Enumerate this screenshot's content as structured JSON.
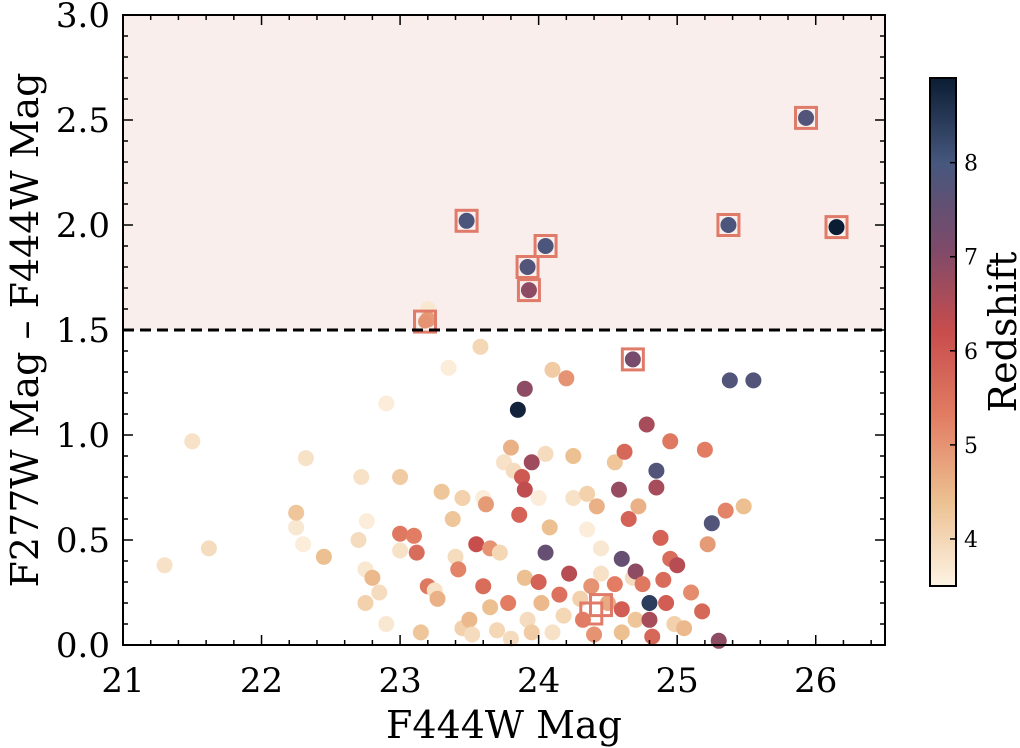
{
  "chart_data": {
    "type": "scatter",
    "xlabel": "F444W Mag",
    "ylabel": "F277W Mag – F444W Mag",
    "xlim": [
      21,
      26.5
    ],
    "ylim": [
      0.0,
      3.0
    ],
    "x_ticks": [
      "21",
      "22",
      "23",
      "24",
      "25",
      "26"
    ],
    "y_ticks": [
      "0.0",
      "0.5",
      "1.0",
      "1.5",
      "2.0",
      "2.5",
      "3.0"
    ],
    "threshold_line": {
      "y": 1.5,
      "style": "dashed"
    },
    "shaded_region": {
      "y_from": 1.5,
      "y_to": 3.0,
      "color": "#f9eeec"
    },
    "colorbar": {
      "label": "Redshift",
      "range": [
        3.5,
        8.9
      ],
      "ticks": [
        "4",
        "5",
        "6",
        "7",
        "8"
      ],
      "colors": [
        "#fdf3e3",
        "#ecc091",
        "#e27d63",
        "#c84d4d",
        "#7d4a6a",
        "#46577e",
        "#0b1d33"
      ]
    },
    "highlight_box_color": "#e07b6a",
    "points": [
      {
        "x": 21.3,
        "y": 0.38,
        "z": 3.8
      },
      {
        "x": 21.5,
        "y": 0.97,
        "z": 3.8
      },
      {
        "x": 21.62,
        "y": 0.46,
        "z": 3.9
      },
      {
        "x": 22.25,
        "y": 0.56,
        "z": 3.7
      },
      {
        "x": 22.25,
        "y": 0.63,
        "z": 4.3
      },
      {
        "x": 22.3,
        "y": 0.48,
        "z": 3.6
      },
      {
        "x": 22.32,
        "y": 0.89,
        "z": 3.8
      },
      {
        "x": 22.45,
        "y": 0.42,
        "z": 4.4
      },
      {
        "x": 22.7,
        "y": 0.5,
        "z": 3.9
      },
      {
        "x": 22.72,
        "y": 0.8,
        "z": 3.8
      },
      {
        "x": 22.75,
        "y": 0.36,
        "z": 3.7
      },
      {
        "x": 22.75,
        "y": 0.2,
        "z": 4.1
      },
      {
        "x": 22.76,
        "y": 0.59,
        "z": 3.6
      },
      {
        "x": 22.8,
        "y": 0.32,
        "z": 4.5
      },
      {
        "x": 22.85,
        "y": 0.25,
        "z": 3.9
      },
      {
        "x": 22.9,
        "y": 1.15,
        "z": 3.6
      },
      {
        "x": 22.9,
        "y": 0.1,
        "z": 3.7
      },
      {
        "x": 23.0,
        "y": 0.8,
        "z": 4.2
      },
      {
        "x": 23.0,
        "y": 0.53,
        "z": 5.4
      },
      {
        "x": 23.0,
        "y": 0.45,
        "z": 3.8
      },
      {
        "x": 23.1,
        "y": 0.52,
        "z": 5.3
      },
      {
        "x": 23.12,
        "y": 0.44,
        "z": 5.6
      },
      {
        "x": 23.15,
        "y": 0.06,
        "z": 4.3
      },
      {
        "x": 23.2,
        "y": 0.28,
        "z": 5.4
      },
      {
        "x": 23.25,
        "y": 0.26,
        "z": 3.8
      },
      {
        "x": 23.27,
        "y": 0.22,
        "z": 4.6
      },
      {
        "x": 23.3,
        "y": 0.73,
        "z": 4.3
      },
      {
        "x": 23.35,
        "y": 1.32,
        "z": 3.6
      },
      {
        "x": 23.38,
        "y": 0.6,
        "z": 4.3
      },
      {
        "x": 23.4,
        "y": 0.42,
        "z": 3.9
      },
      {
        "x": 23.42,
        "y": 0.36,
        "z": 5.2
      },
      {
        "x": 23.45,
        "y": 0.7,
        "z": 4.1
      },
      {
        "x": 23.45,
        "y": 0.08,
        "z": 4.1
      },
      {
        "x": 23.5,
        "y": 0.12,
        "z": 4.5
      },
      {
        "x": 23.52,
        "y": 0.05,
        "z": 3.9
      },
      {
        "x": 23.55,
        "y": 0.48,
        "z": 6.2
      },
      {
        "x": 23.58,
        "y": 1.42,
        "z": 4.0
      },
      {
        "x": 23.6,
        "y": 0.7,
        "z": 3.6
      },
      {
        "x": 23.6,
        "y": 0.28,
        "z": 5.6
      },
      {
        "x": 23.62,
        "y": 0.67,
        "z": 4.9
      },
      {
        "x": 23.65,
        "y": 0.46,
        "z": 5.0
      },
      {
        "x": 23.65,
        "y": 0.18,
        "z": 4.4
      },
      {
        "x": 23.7,
        "y": 0.07,
        "z": 4.0
      },
      {
        "x": 23.72,
        "y": 0.44,
        "z": 4.0
      },
      {
        "x": 23.75,
        "y": 0.87,
        "z": 3.8
      },
      {
        "x": 23.78,
        "y": 0.2,
        "z": 5.3
      },
      {
        "x": 23.8,
        "y": 0.94,
        "z": 4.6
      },
      {
        "x": 23.8,
        "y": 0.03,
        "z": 3.9
      },
      {
        "x": 23.82,
        "y": 0.83,
        "z": 3.9
      },
      {
        "x": 23.85,
        "y": 1.12,
        "z": 8.8
      },
      {
        "x": 23.86,
        "y": 0.62,
        "z": 5.8
      },
      {
        "x": 23.88,
        "y": 0.8,
        "z": 6.0
      },
      {
        "x": 23.9,
        "y": 1.22,
        "z": 6.9
      },
      {
        "x": 23.9,
        "y": 0.74,
        "z": 6.3
      },
      {
        "x": 23.9,
        "y": 0.32,
        "z": 4.4
      },
      {
        "x": 23.92,
        "y": 0.12,
        "z": 3.9
      },
      {
        "x": 23.95,
        "y": 0.87,
        "z": 6.7
      },
      {
        "x": 23.95,
        "y": 0.06,
        "z": 4.2
      },
      {
        "x": 24.0,
        "y": 0.7,
        "z": 3.6
      },
      {
        "x": 24.0,
        "y": 0.3,
        "z": 5.8
      },
      {
        "x": 24.02,
        "y": 0.2,
        "z": 4.5
      },
      {
        "x": 24.05,
        "y": 0.44,
        "z": 7.5
      },
      {
        "x": 24.05,
        "y": 0.91,
        "z": 3.9
      },
      {
        "x": 24.08,
        "y": 0.56,
        "z": 4.4
      },
      {
        "x": 24.1,
        "y": 0.06,
        "z": 3.8
      },
      {
        "x": 24.1,
        "y": 1.31,
        "z": 4.2
      },
      {
        "x": 24.15,
        "y": 0.24,
        "z": 5.5
      },
      {
        "x": 24.18,
        "y": 0.14,
        "z": 4.0
      },
      {
        "x": 24.2,
        "y": 1.27,
        "z": 5.0
      },
      {
        "x": 24.22,
        "y": 0.34,
        "z": 6.4
      },
      {
        "x": 24.25,
        "y": 0.9,
        "z": 4.4
      },
      {
        "x": 24.25,
        "y": 0.7,
        "z": 3.8
      },
      {
        "x": 24.3,
        "y": 0.22,
        "z": 4.1
      },
      {
        "x": 24.32,
        "y": 0.12,
        "z": 5.3
      },
      {
        "x": 24.35,
        "y": 0.72,
        "z": 4.1
      },
      {
        "x": 24.35,
        "y": 0.55,
        "z": 3.6
      },
      {
        "x": 24.38,
        "y": 0.28,
        "z": 5.0
      },
      {
        "x": 24.4,
        "y": 0.05,
        "z": 5.0
      },
      {
        "x": 24.42,
        "y": 0.66,
        "z": 4.6
      },
      {
        "x": 24.45,
        "y": 0.46,
        "z": 3.7
      },
      {
        "x": 24.45,
        "y": 0.34,
        "z": 3.8
      },
      {
        "x": 24.5,
        "y": 0.2,
        "z": 4.7
      },
      {
        "x": 24.55,
        "y": 0.87,
        "z": 4.3
      },
      {
        "x": 24.55,
        "y": 0.29,
        "z": 5.3
      },
      {
        "x": 24.58,
        "y": 0.74,
        "z": 6.8
      },
      {
        "x": 24.6,
        "y": 0.41,
        "z": 7.5
      },
      {
        "x": 24.6,
        "y": 0.17,
        "z": 5.9
      },
      {
        "x": 24.6,
        "y": 0.06,
        "z": 4.4
      },
      {
        "x": 24.62,
        "y": 0.92,
        "z": 5.7
      },
      {
        "x": 24.65,
        "y": 0.6,
        "z": 5.8
      },
      {
        "x": 24.68,
        "y": 0.32,
        "z": 3.9
      },
      {
        "x": 24.7,
        "y": 0.35,
        "z": 6.9
      },
      {
        "x": 24.7,
        "y": 0.12,
        "z": 4.3
      },
      {
        "x": 24.72,
        "y": 0.66,
        "z": 4.6
      },
      {
        "x": 24.75,
        "y": 0.29,
        "z": 5.4
      },
      {
        "x": 24.78,
        "y": 1.05,
        "z": 6.6
      },
      {
        "x": 24.8,
        "y": 0.2,
        "z": 8.4
      },
      {
        "x": 24.8,
        "y": 0.12,
        "z": 6.6
      },
      {
        "x": 24.82,
        "y": 0.04,
        "z": 5.7
      },
      {
        "x": 24.85,
        "y": 0.83,
        "z": 7.8
      },
      {
        "x": 24.85,
        "y": 0.75,
        "z": 6.6
      },
      {
        "x": 24.88,
        "y": 0.51,
        "z": 5.8
      },
      {
        "x": 24.9,
        "y": 0.31,
        "z": 5.6
      },
      {
        "x": 24.92,
        "y": 0.2,
        "z": 5.9
      },
      {
        "x": 24.95,
        "y": 0.97,
        "z": 5.4
      },
      {
        "x": 24.95,
        "y": 0.41,
        "z": 5.6
      },
      {
        "x": 24.98,
        "y": 0.1,
        "z": 4.1
      },
      {
        "x": 25.0,
        "y": 0.38,
        "z": 6.4
      },
      {
        "x": 25.05,
        "y": 0.08,
        "z": 4.5
      },
      {
        "x": 25.1,
        "y": 0.25,
        "z": 5.1
      },
      {
        "x": 25.18,
        "y": 0.16,
        "z": 5.7
      },
      {
        "x": 25.2,
        "y": 0.93,
        "z": 5.3
      },
      {
        "x": 25.22,
        "y": 0.48,
        "z": 4.9
      },
      {
        "x": 25.25,
        "y": 0.58,
        "z": 7.8
      },
      {
        "x": 25.3,
        "y": 0.02,
        "z": 6.9
      },
      {
        "x": 25.35,
        "y": 0.64,
        "z": 5.2
      },
      {
        "x": 25.38,
        "y": 1.26,
        "z": 7.8
      },
      {
        "x": 25.48,
        "y": 0.66,
        "z": 4.4
      },
      {
        "x": 25.55,
        "y": 1.26,
        "z": 7.8
      },
      {
        "x": 23.2,
        "y": 1.6,
        "z": 3.7
      },
      {
        "x": 23.2,
        "y": 1.55,
        "z": 4.9
      },
      {
        "x": 23.48,
        "y": 2.02,
        "z": 7.9
      },
      {
        "x": 23.92,
        "y": 1.8,
        "z": 7.8
      },
      {
        "x": 23.93,
        "y": 1.69,
        "z": 6.9
      },
      {
        "x": 24.05,
        "y": 1.9,
        "z": 7.9
      },
      {
        "x": 24.68,
        "y": 1.36,
        "z": 7.2
      },
      {
        "x": 25.37,
        "y": 2.0,
        "z": 7.9
      },
      {
        "x": 25.93,
        "y": 2.51,
        "z": 7.8
      },
      {
        "x": 26.15,
        "y": 1.99,
        "z": 8.9
      }
    ],
    "highlighted": [
      {
        "x": 23.18,
        "y": 1.54,
        "z": 5.0
      },
      {
        "x": 23.48,
        "y": 2.02,
        "z": 7.9
      },
      {
        "x": 23.92,
        "y": 1.8,
        "z": 7.8
      },
      {
        "x": 23.93,
        "y": 1.69,
        "z": 6.9
      },
      {
        "x": 24.05,
        "y": 1.9,
        "z": 7.9
      },
      {
        "x": 24.68,
        "y": 1.36,
        "z": 7.2
      },
      {
        "x": 25.37,
        "y": 2.0,
        "z": 7.9
      },
      {
        "x": 25.93,
        "y": 2.51,
        "z": 7.8
      },
      {
        "x": 26.15,
        "y": 1.99,
        "z": 8.9
      },
      {
        "x": 24.38,
        "y": 0.15,
        "z": null
      },
      {
        "x": 24.45,
        "y": 0.19,
        "z": null
      }
    ]
  }
}
